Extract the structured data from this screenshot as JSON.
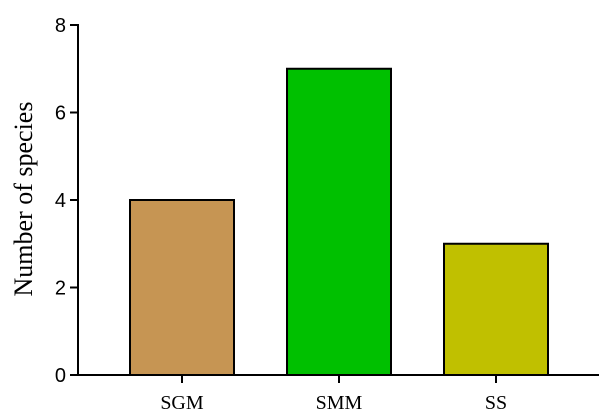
{
  "chart_data": {
    "type": "bar",
    "title": "",
    "xlabel": "",
    "ylabel": "Number of species",
    "categories": [
      "SGM",
      "SMM",
      "SS"
    ],
    "values": [
      4,
      7,
      3
    ],
    "bar_colors": [
      "#c69553",
      "#00c000",
      "#c0c000"
    ],
    "ylim": [
      0,
      8
    ],
    "yticks": [
      0,
      2,
      4,
      6,
      8
    ],
    "ytick_labels": [
      "0",
      "2",
      "4",
      "6",
      "8"
    ],
    "grid": false,
    "legend": "none"
  }
}
